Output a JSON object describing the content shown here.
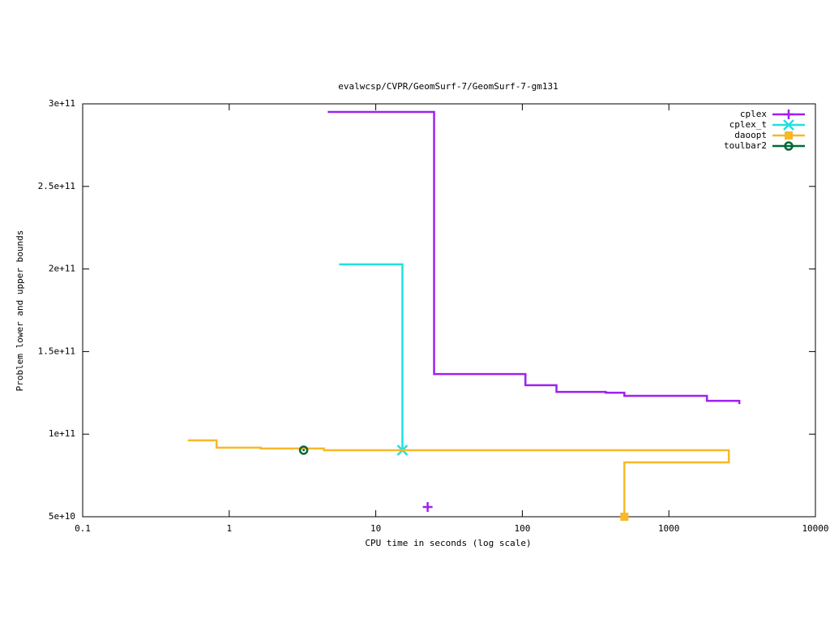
{
  "chart_data": {
    "type": "line",
    "title": "evalwcsp/CVPR/GeomSurf-7/GeomSurf-7-gm131",
    "x_label": "CPU time in seconds (log scale)",
    "y_label": "Problem lower and upper bounds",
    "x_log": true,
    "steps": true,
    "grid": false,
    "legend_position": "top-right",
    "xlim": [
      0.1,
      10000
    ],
    "xticks": [
      0.1,
      1,
      10,
      100,
      1000,
      10000
    ],
    "ylim": [
      50000000000,
      300000000000
    ],
    "yticks": [
      {
        "value": 50000000000,
        "label": "5e+10"
      },
      {
        "value": 100000000000,
        "label": "1e+11"
      },
      {
        "value": 150000000000,
        "label": "1.5e+11"
      },
      {
        "value": 200000000000,
        "label": "2e+11"
      },
      {
        "value": 250000000000,
        "label": "2.5e+11"
      },
      {
        "value": 300000000000,
        "label": "3e+11"
      }
    ],
    "series": [
      {
        "name": "cplex",
        "color": "#a020f0",
        "marker": "plus",
        "x": [
          4.78,
          25,
          105,
          171,
          371,
          497,
          1820,
          3027,
          null,
          22.6
        ],
        "values": [
          295100000000,
          136400000000,
          129600000000,
          125600000000,
          125100000000,
          123200000000,
          120200000000,
          118800000000,
          null,
          55900000000
        ]
      },
      {
        "name": "cplex_t",
        "color": "#20e0e0",
        "marker": "cross",
        "x": [
          5.71,
          15.2
        ],
        "values": [
          202800000000,
          90300000000
        ]
      },
      {
        "name": "daoopt",
        "color": "#f8b828",
        "marker": "square",
        "x": [
          0.53,
          0.82,
          1.64,
          4.43,
          2565,
          497
        ],
        "values": [
          96200000000,
          91800000000,
          91300000000,
          90300000000,
          82900000000,
          50000000000
        ]
      },
      {
        "name": "toulbar2",
        "color": "#006838",
        "marker": "circle",
        "x": [
          3.22
        ],
        "values": [
          90300000000
        ]
      }
    ]
  }
}
